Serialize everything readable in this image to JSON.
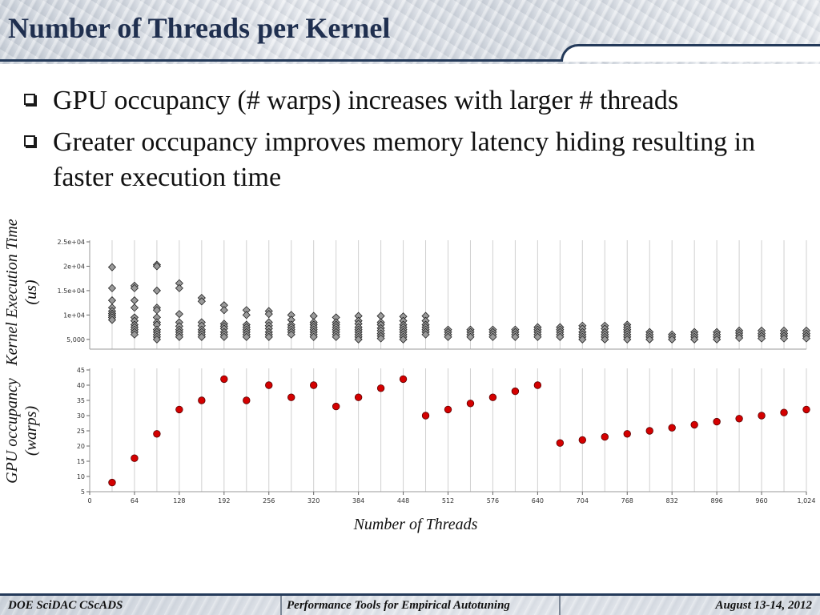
{
  "slide": {
    "title": "Number of Threads per Kernel",
    "bullets": [
      "GPU occupancy (# warps) increases with larger # threads",
      "Greater occupancy improves memory latency hiding resulting in faster execution time"
    ]
  },
  "footer": {
    "left": "DOE SciDAC CScADS",
    "center": "Performance Tools for Empirical Autotuning",
    "right": "August 13-14, 2012"
  },
  "colors": {
    "title": "#1f2f4f",
    "header_rule": "#243a5a",
    "diamond_fill": "#9a9a9a",
    "diamond_stroke": "#222222",
    "occupancy_point": "#d40000",
    "grid": "#d0d0d0"
  },
  "chart_data": [
    {
      "type": "scatter",
      "ylabel": "Kernel Execution Time (us)",
      "xlabel": "",
      "xlim": [
        0,
        1024
      ],
      "ylim": [
        3000,
        25000
      ],
      "yticks": [
        5000,
        10000,
        15000,
        20000,
        25000
      ],
      "ytick_labels": [
        "5,000",
        "1e+04",
        "1.5e+04",
        "2e+04",
        "2.5e+04"
      ],
      "grid": "vertical",
      "marker": "diamond",
      "series": [
        {
          "points": [
            [
              32,
              19800
            ],
            [
              32,
              15500
            ],
            [
              32,
              13000
            ],
            [
              32,
              11500
            ],
            [
              32,
              10800
            ],
            [
              32,
              10300
            ],
            [
              32,
              9900
            ],
            [
              32,
              9500
            ],
            [
              32,
              9000
            ],
            [
              64,
              16000
            ],
            [
              64,
              15500
            ],
            [
              64,
              13000
            ],
            [
              64,
              11500
            ],
            [
              64,
              9500
            ],
            [
              64,
              8800
            ],
            [
              64,
              8000
            ],
            [
              64,
              7500
            ],
            [
              64,
              7000
            ],
            [
              64,
              6500
            ],
            [
              64,
              6000
            ],
            [
              96,
              20300
            ],
            [
              96,
              20000
            ],
            [
              96,
              15000
            ],
            [
              96,
              11500
            ],
            [
              96,
              11000
            ],
            [
              96,
              9500
            ],
            [
              96,
              8500
            ],
            [
              96,
              8000
            ],
            [
              96,
              7000
            ],
            [
              96,
              6500
            ],
            [
              96,
              6000
            ],
            [
              96,
              5500
            ],
            [
              96,
              5000
            ],
            [
              128,
              16500
            ],
            [
              128,
              15500
            ],
            [
              128,
              10200
            ],
            [
              128,
              8500
            ],
            [
              128,
              7700
            ],
            [
              128,
              7000
            ],
            [
              128,
              6500
            ],
            [
              128,
              6000
            ],
            [
              128,
              5500
            ],
            [
              160,
              13500
            ],
            [
              160,
              12800
            ],
            [
              160,
              8500
            ],
            [
              160,
              7800
            ],
            [
              160,
              7000
            ],
            [
              160,
              6500
            ],
            [
              160,
              6000
            ],
            [
              160,
              5500
            ],
            [
              192,
              12000
            ],
            [
              192,
              11000
            ],
            [
              192,
              8200
            ],
            [
              192,
              7700
            ],
            [
              192,
              7200
            ],
            [
              192,
              6500
            ],
            [
              192,
              6000
            ],
            [
              192,
              5500
            ],
            [
              224,
              11000
            ],
            [
              224,
              10000
            ],
            [
              224,
              8000
            ],
            [
              224,
              7500
            ],
            [
              224,
              7000
            ],
            [
              224,
              6500
            ],
            [
              224,
              6000
            ],
            [
              224,
              5500
            ],
            [
              256,
              10800
            ],
            [
              256,
              10200
            ],
            [
              256,
              8500
            ],
            [
              256,
              7800
            ],
            [
              256,
              7200
            ],
            [
              256,
              6500
            ],
            [
              256,
              6000
            ],
            [
              256,
              5500
            ],
            [
              288,
              10000
            ],
            [
              288,
              9000
            ],
            [
              288,
              8000
            ],
            [
              288,
              7500
            ],
            [
              288,
              7000
            ],
            [
              288,
              6500
            ],
            [
              288,
              6000
            ],
            [
              320,
              9800
            ],
            [
              320,
              8500
            ],
            [
              320,
              8000
            ],
            [
              320,
              7500
            ],
            [
              320,
              7000
            ],
            [
              320,
              6500
            ],
            [
              320,
              6000
            ],
            [
              320,
              5500
            ],
            [
              352,
              9500
            ],
            [
              352,
              8500
            ],
            [
              352,
              8000
            ],
            [
              352,
              7500
            ],
            [
              352,
              7000
            ],
            [
              352,
              6500
            ],
            [
              352,
              6000
            ],
            [
              352,
              5500
            ],
            [
              384,
              9800
            ],
            [
              384,
              8800
            ],
            [
              384,
              8200
            ],
            [
              384,
              7500
            ],
            [
              384,
              7000
            ],
            [
              384,
              6500
            ],
            [
              384,
              6000
            ],
            [
              384,
              5500
            ],
            [
              384,
              5000
            ],
            [
              416,
              9800
            ],
            [
              416,
              8500
            ],
            [
              416,
              8000
            ],
            [
              416,
              7300
            ],
            [
              416,
              6800
            ],
            [
              416,
              6200
            ],
            [
              416,
              5700
            ],
            [
              416,
              5200
            ],
            [
              448,
              9700
            ],
            [
              448,
              8800
            ],
            [
              448,
              8000
            ],
            [
              448,
              7500
            ],
            [
              448,
              7000
            ],
            [
              448,
              6500
            ],
            [
              448,
              6000
            ],
            [
              448,
              5500
            ],
            [
              448,
              5000
            ],
            [
              480,
              9800
            ],
            [
              480,
              8800
            ],
            [
              480,
              8000
            ],
            [
              480,
              7500
            ],
            [
              480,
              7000
            ],
            [
              480,
              6500
            ],
            [
              480,
              6000
            ],
            [
              512,
              7000
            ],
            [
              512,
              6500
            ],
            [
              512,
              6000
            ],
            [
              512,
              5500
            ],
            [
              544,
              7000
            ],
            [
              544,
              6500
            ],
            [
              544,
              6000
            ],
            [
              544,
              5500
            ],
            [
              576,
              7000
            ],
            [
              576,
              6500
            ],
            [
              576,
              6000
            ],
            [
              576,
              5500
            ],
            [
              608,
              7000
            ],
            [
              608,
              6500
            ],
            [
              608,
              6000
            ],
            [
              608,
              5500
            ],
            [
              640,
              7500
            ],
            [
              640,
              7000
            ],
            [
              640,
              6500
            ],
            [
              640,
              6000
            ],
            [
              640,
              5500
            ],
            [
              672,
              7500
            ],
            [
              672,
              7000
            ],
            [
              672,
              6500
            ],
            [
              672,
              6000
            ],
            [
              672,
              5500
            ],
            [
              704,
              7800
            ],
            [
              704,
              7200
            ],
            [
              704,
              6500
            ],
            [
              704,
              6000
            ],
            [
              704,
              5500
            ],
            [
              704,
              5000
            ],
            [
              736,
              7800
            ],
            [
              736,
              7200
            ],
            [
              736,
              6500
            ],
            [
              736,
              6000
            ],
            [
              736,
              5500
            ],
            [
              736,
              5000
            ],
            [
              768,
              8000
            ],
            [
              768,
              7500
            ],
            [
              768,
              7000
            ],
            [
              768,
              6500
            ],
            [
              768,
              6000
            ],
            [
              768,
              5500
            ],
            [
              768,
              5000
            ],
            [
              800,
              6500
            ],
            [
              800,
              6000
            ],
            [
              800,
              5500
            ],
            [
              800,
              5000
            ],
            [
              832,
              6000
            ],
            [
              832,
              5500
            ],
            [
              832,
              5000
            ],
            [
              864,
              6500
            ],
            [
              864,
              6000
            ],
            [
              864,
              5500
            ],
            [
              864,
              5000
            ],
            [
              896,
              6500
            ],
            [
              896,
              6000
            ],
            [
              896,
              5500
            ],
            [
              896,
              5000
            ],
            [
              928,
              6800
            ],
            [
              928,
              6300
            ],
            [
              928,
              5800
            ],
            [
              928,
              5300
            ],
            [
              960,
              6800
            ],
            [
              960,
              6200
            ],
            [
              960,
              5700
            ],
            [
              960,
              5200
            ],
            [
              992,
              6800
            ],
            [
              992,
              6200
            ],
            [
              992,
              5700
            ],
            [
              992,
              5200
            ],
            [
              1024,
              6800
            ],
            [
              1024,
              6200
            ],
            [
              1024,
              5700
            ],
            [
              1024,
              5200
            ]
          ]
        }
      ]
    },
    {
      "type": "scatter",
      "ylabel": "GPU occupancy (warps)",
      "xlabel": "Number of Threads",
      "xlim": [
        0,
        1024
      ],
      "ylim": [
        5,
        45
      ],
      "yticks": [
        5,
        10,
        15,
        20,
        25,
        30,
        35,
        40,
        45
      ],
      "xticks": [
        0,
        64,
        128,
        192,
        256,
        320,
        384,
        448,
        512,
        576,
        640,
        704,
        768,
        832,
        896,
        960,
        1024
      ],
      "xtick_labels": [
        "0",
        "64",
        "128",
        "192",
        "256",
        "320",
        "384",
        "448",
        "512",
        "576",
        "640",
        "704",
        "768",
        "832",
        "896",
        "960",
        "1,024"
      ],
      "grid": "vertical",
      "marker": "circle",
      "series": [
        {
          "x": [
            32,
            64,
            96,
            128,
            160,
            192,
            224,
            256,
            288,
            320,
            352,
            384,
            416,
            448,
            480,
            512,
            544,
            576,
            608,
            640,
            672,
            704,
            736,
            768,
            800,
            832,
            864,
            896,
            928,
            960,
            992,
            1024
          ],
          "y": [
            8,
            16,
            24,
            32,
            35,
            42,
            35,
            40,
            36,
            40,
            33,
            36,
            39,
            42,
            30,
            32,
            34,
            36,
            38,
            40,
            21,
            22,
            23,
            24,
            25,
            26,
            27,
            28,
            29,
            30,
            31,
            32
          ]
        }
      ]
    }
  ]
}
